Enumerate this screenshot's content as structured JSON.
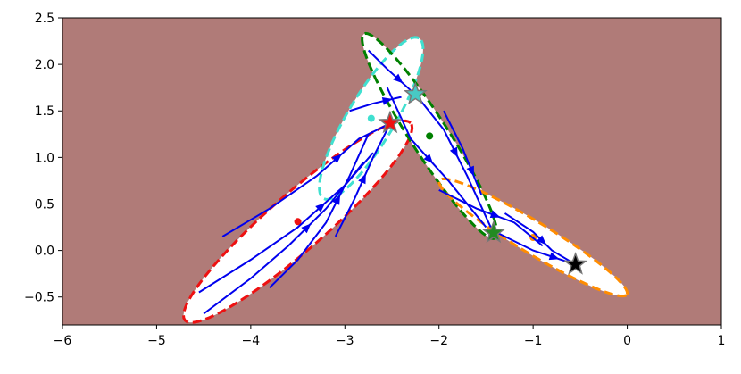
{
  "chart_data": {
    "type": "streamplot",
    "background": "#b07b78",
    "stream_color": "#0000ee",
    "xlim": [
      -6,
      1
    ],
    "ylim": [
      -0.8,
      2.5
    ],
    "xticks": [
      {
        "value": -6,
        "label": "−6"
      },
      {
        "value": -5,
        "label": "−5"
      },
      {
        "value": -4,
        "label": "−4"
      },
      {
        "value": -3,
        "label": "−3"
      },
      {
        "value": -2,
        "label": "−2"
      },
      {
        "value": -1,
        "label": "−1"
      },
      0,
      1
    ],
    "yticks": [
      {
        "value": -0.5,
        "label": "−0.5"
      },
      {
        "value": 0,
        "label": "0.0"
      },
      0.5,
      {
        "value": 1,
        "label": "1.0"
      },
      1.5,
      {
        "value": 2,
        "label": "2.0"
      },
      2.5
    ],
    "regions": [
      {
        "color": "#ee1111",
        "center": [
          -3.5,
          0.31
        ],
        "semi_axes": [
          1.6,
          0.3
        ],
        "angle": 41.5
      },
      {
        "color": "#40e0d0",
        "center": [
          -2.72,
          1.42
        ],
        "semi_axes": [
          1.0,
          0.25
        ],
        "angle": 59.5
      },
      {
        "color": "#008000",
        "center": [
          -2.1,
          1.23
        ],
        "semi_axes": [
          1.3,
          0.2
        ],
        "angle": -57.6
      },
      {
        "color": "#ff8c00",
        "center": [
          -1.0,
          0.14
        ],
        "semi_axes": [
          1.17,
          0.17
        ],
        "angle": -31.6
      }
    ],
    "streamlines": [
      {
        "x": [
          -4.3,
          -3.8,
          -3.3,
          -2.85,
          -2.55
        ],
        "y": [
          0.15,
          0.45,
          0.8,
          1.2,
          1.35
        ]
      },
      {
        "x": [
          -4.55,
          -4.0,
          -3.5,
          -3.0,
          -2.7
        ],
        "y": [
          -0.45,
          -0.1,
          0.25,
          0.7,
          1.05
        ]
      },
      {
        "x": [
          -4.5,
          -4.0,
          -3.6,
          -3.2,
          -2.8
        ],
        "y": [
          -0.68,
          -0.3,
          0.05,
          0.45,
          0.95
        ]
      },
      {
        "x": [
          -3.8,
          -3.5,
          -3.2,
          -2.95,
          -2.75
        ],
        "y": [
          -0.4,
          -0.1,
          0.3,
          0.8,
          1.25
        ]
      },
      {
        "x": [
          -3.1,
          -2.9,
          -2.7,
          -2.55
        ],
        "y": [
          0.15,
          0.55,
          1.0,
          1.3
        ]
      },
      {
        "x": [
          -2.95,
          -2.7,
          -2.4
        ],
        "y": [
          1.5,
          1.58,
          1.65
        ]
      },
      {
        "x": [
          -2.75,
          -2.55,
          -2.3
        ],
        "y": [
          2.15,
          1.95,
          1.72
        ]
      },
      {
        "x": [
          -2.25,
          -1.95,
          -1.7,
          -1.45
        ],
        "y": [
          1.68,
          1.3,
          0.8,
          0.25
        ]
      },
      {
        "x": [
          -2.55,
          -2.3,
          -1.9,
          -1.5
        ],
        "y": [
          1.75,
          1.2,
          0.75,
          0.25
        ]
      },
      {
        "x": [
          -1.95,
          -1.75,
          -1.55
        ],
        "y": [
          1.5,
          1.1,
          0.6
        ]
      },
      {
        "x": [
          -1.4,
          -1.0,
          -0.55
        ],
        "y": [
          0.2,
          0.0,
          -0.15
        ]
      },
      {
        "x": [
          -1.3,
          -1.0,
          -0.8,
          -0.55
        ],
        "y": [
          0.4,
          0.2,
          0.0,
          -0.15
        ]
      },
      {
        "x": [
          -2.0,
          -1.6,
          -1.2,
          -0.9
        ],
        "y": [
          0.65,
          0.45,
          0.3,
          0.05
        ]
      }
    ],
    "stars": [
      {
        "x": -2.52,
        "y": 1.37,
        "color": "#ee1111"
      },
      {
        "x": -2.25,
        "y": 1.68,
        "color": "#48c9c4"
      },
      {
        "x": -1.42,
        "y": 0.19,
        "color": "#228b22"
      },
      {
        "x": -0.55,
        "y": -0.15,
        "color": "#000000"
      }
    ]
  }
}
